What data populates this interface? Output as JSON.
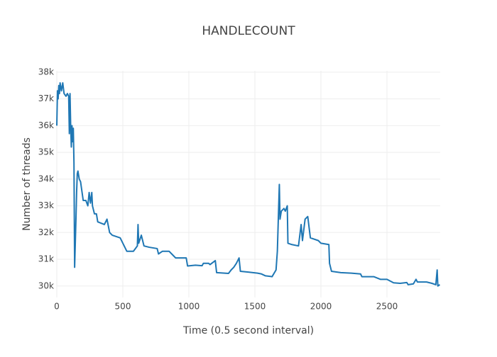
{
  "chart_data": {
    "type": "line",
    "title": "HANDLECOUNT",
    "x_label": "Time (0.5 second interval)",
    "y_label": "Number of threads",
    "x": [
      0,
      5,
      10,
      15,
      20,
      25,
      35,
      45,
      55,
      70,
      80,
      90,
      95,
      100,
      105,
      110,
      115,
      120,
      125,
      130,
      135,
      145,
      150,
      155,
      160,
      170,
      180,
      200,
      220,
      235,
      245,
      255,
      265,
      270,
      285,
      300,
      310,
      360,
      380,
      400,
      420,
      480,
      530,
      580,
      610,
      615,
      620,
      640,
      660,
      700,
      760,
      770,
      800,
      850,
      880,
      900,
      980,
      990,
      1050,
      1100,
      1110,
      1150,
      1160,
      1200,
      1210,
      1300,
      1320,
      1340,
      1360,
      1380,
      1390,
      1450,
      1520,
      1550,
      1580,
      1630,
      1660,
      1670,
      1685,
      1690,
      1700,
      1720,
      1730,
      1745,
      1750,
      1780,
      1830,
      1850,
      1860,
      1880,
      1900,
      1920,
      1980,
      2000,
      2060,
      2065,
      2080,
      2150,
      2230,
      2300,
      2310,
      2400,
      2450,
      2500,
      2550,
      2600,
      2650,
      2660,
      2700,
      2720,
      2730,
      2800,
      2840,
      2870,
      2880,
      2885,
      2900
    ],
    "series": [
      {
        "name": "HANDLECOUNT",
        "color": "#1f77b4",
        "values": [
          36000,
          37300,
          37000,
          37500,
          37200,
          37600,
          37300,
          37600,
          37200,
          37100,
          37200,
          37100,
          35700,
          37200,
          36000,
          35200,
          36000,
          35400,
          35900,
          34600,
          30700,
          32500,
          33500,
          34200,
          34300,
          34000,
          33900,
          33200,
          33200,
          33000,
          33500,
          33100,
          33500,
          33000,
          32700,
          32700,
          32400,
          32300,
          32500,
          32000,
          31900,
          31800,
          31300,
          31300,
          31500,
          32300,
          31600,
          31900,
          31500,
          31450,
          31400,
          31200,
          31300,
          31300,
          31150,
          31050,
          31050,
          30750,
          30780,
          30760,
          30850,
          30850,
          30800,
          30950,
          30500,
          30470,
          30600,
          30700,
          30850,
          31050,
          30550,
          30520,
          30480,
          30450,
          30380,
          30350,
          30600,
          31300,
          33800,
          32500,
          32800,
          32900,
          32800,
          33000,
          31600,
          31550,
          31500,
          32300,
          31700,
          32500,
          32600,
          31800,
          31700,
          31600,
          31550,
          30850,
          30550,
          30500,
          30480,
          30450,
          30350,
          30350,
          30250,
          30250,
          30120,
          30100,
          30130,
          30050,
          30080,
          30250,
          30150,
          30150,
          30100,
          30050,
          30600,
          30000,
          30050
        ]
      }
    ],
    "xlim": [
      0,
      2903
    ],
    "xticks": [
      0,
      500,
      1000,
      1500,
      2000,
      2500
    ],
    "ylim": [
      29570,
      38050
    ],
    "yticks": [
      {
        "value": 30000,
        "label": "30k"
      },
      {
        "value": 31000,
        "label": "31k"
      },
      {
        "value": 32000,
        "label": "32k"
      },
      {
        "value": 33000,
        "label": "33k"
      },
      {
        "value": 34000,
        "label": "34k"
      },
      {
        "value": 35000,
        "label": "35k"
      },
      {
        "value": 36000,
        "label": "36k"
      },
      {
        "value": 37000,
        "label": "37k"
      },
      {
        "value": 38000,
        "label": "38k"
      }
    ],
    "grid": true
  }
}
